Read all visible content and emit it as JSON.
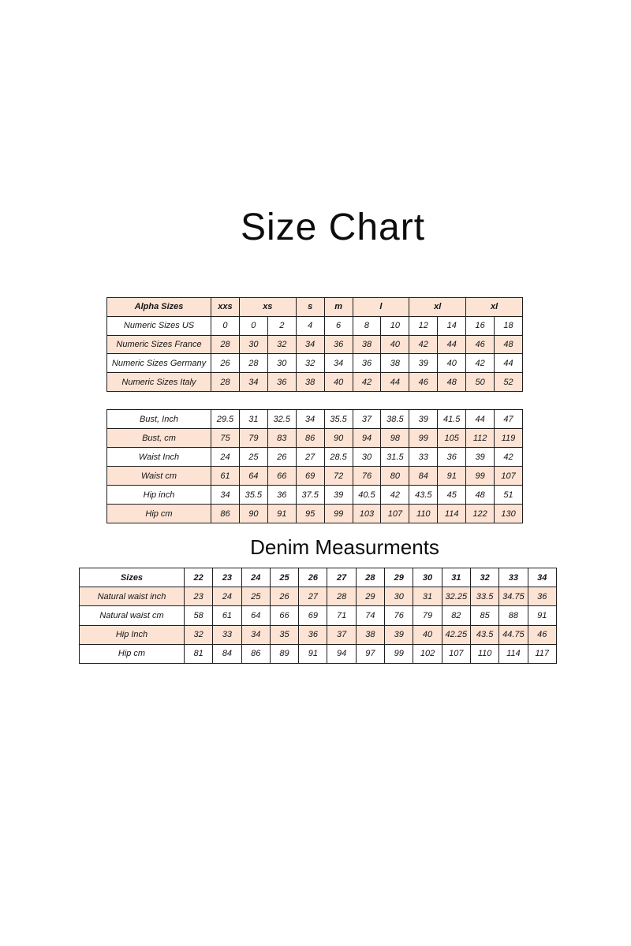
{
  "page": {
    "title": "Size Chart",
    "denim_heading": "Denim Measurments"
  },
  "colors": {
    "shaded_row_fill": "#fce3d4",
    "border": "#1f1f1f",
    "text": "#141414",
    "background": "#ffffff"
  },
  "tables": [
    {
      "name": "international-sizes-table",
      "rows": [
        {
          "shaded": true,
          "bold": true,
          "header": true,
          "cells": [
            {
              "t": "Alpha Sizes"
            },
            {
              "t": "xxs"
            },
            {
              "t": "xs",
              "span": 2
            },
            {
              "t": "s"
            },
            {
              "t": "m"
            },
            {
              "t": "l",
              "span": 2
            },
            {
              "t": "xl",
              "span": 2
            },
            {
              "t": "xl",
              "span": 2
            }
          ]
        },
        {
          "shaded": false,
          "cells": [
            "Numeric Sizes US",
            "0",
            "0",
            "2",
            "4",
            "6",
            "8",
            "10",
            "12",
            "14",
            "16",
            "18"
          ]
        },
        {
          "shaded": true,
          "cells": [
            "Numeric Sizes France",
            "28",
            "30",
            "32",
            "34",
            "36",
            "38",
            "40",
            "42",
            "44",
            "46",
            "48"
          ]
        },
        {
          "shaded": false,
          "cells": [
            "Numeric Sizes Germany",
            "26",
            "28",
            "30",
            "32",
            "34",
            "36",
            "38",
            "39",
            "40",
            "42",
            "44"
          ]
        },
        {
          "shaded": true,
          "cells": [
            "Numeric Sizes Italy",
            "28",
            "34",
            "36",
            "38",
            "40",
            "42",
            "44",
            "46",
            "48",
            "50",
            "52"
          ]
        }
      ]
    },
    {
      "name": "body-measurements-table",
      "rows": [
        {
          "shaded": false,
          "cells": [
            "Bust, Inch",
            "29.5",
            "31",
            "32.5",
            "34",
            "35.5",
            "37",
            "38.5",
            "39",
            "41.5",
            "44",
            "47"
          ]
        },
        {
          "shaded": true,
          "cells": [
            "Bust, cm",
            "75",
            "79",
            "83",
            "86",
            "90",
            "94",
            "98",
            "99",
            "105",
            "112",
            "119"
          ]
        },
        {
          "shaded": false,
          "cells": [
            "Waist Inch",
            "24",
            "25",
            "26",
            "27",
            "28.5",
            "30",
            "31.5",
            "33",
            "36",
            "39",
            "42"
          ]
        },
        {
          "shaded": true,
          "cells": [
            "Waist cm",
            "61",
            "64",
            "66",
            "69",
            "72",
            "76",
            "80",
            "84",
            "91",
            "99",
            "107"
          ]
        },
        {
          "shaded": false,
          "cells": [
            "Hip inch",
            "34",
            "35.5",
            "36",
            "37.5",
            "39",
            "40.5",
            "42",
            "43.5",
            "45",
            "48",
            "51"
          ]
        },
        {
          "shaded": true,
          "cells": [
            "Hip cm",
            "86",
            "90",
            "91",
            "95",
            "99",
            "103",
            "107",
            "110",
            "114",
            "122",
            "130"
          ]
        }
      ]
    },
    {
      "name": "denim-measurements-table",
      "rows": [
        {
          "shaded": false,
          "bold": true,
          "header": true,
          "cells": [
            "Sizes",
            "22",
            "23",
            "24",
            "25",
            "26",
            "27",
            "28",
            "29",
            "30",
            "31",
            "32",
            "33",
            "34"
          ]
        },
        {
          "shaded": true,
          "cells": [
            "Natural waist inch",
            "23",
            "24",
            "25",
            "26",
            "27",
            "28",
            "29",
            "30",
            "31",
            "32.25",
            "33.5",
            "34.75",
            "36"
          ]
        },
        {
          "shaded": false,
          "cells": [
            "Natural waist cm",
            "58",
            "61",
            "64",
            "66",
            "69",
            "71",
            "74",
            "76",
            "79",
            "82",
            "85",
            "88",
            "91"
          ]
        },
        {
          "shaded": true,
          "cells": [
            "Hip Inch",
            "32",
            "33",
            "34",
            "35",
            "36",
            "37",
            "38",
            "39",
            "40",
            "42.25",
            "43.5",
            "44.75",
            "46"
          ]
        },
        {
          "shaded": false,
          "cells": [
            "Hip cm",
            "81",
            "84",
            "86",
            "89",
            "91",
            "94",
            "97",
            "99",
            "102",
            "107",
            "110",
            "114",
            "117"
          ]
        }
      ]
    }
  ]
}
